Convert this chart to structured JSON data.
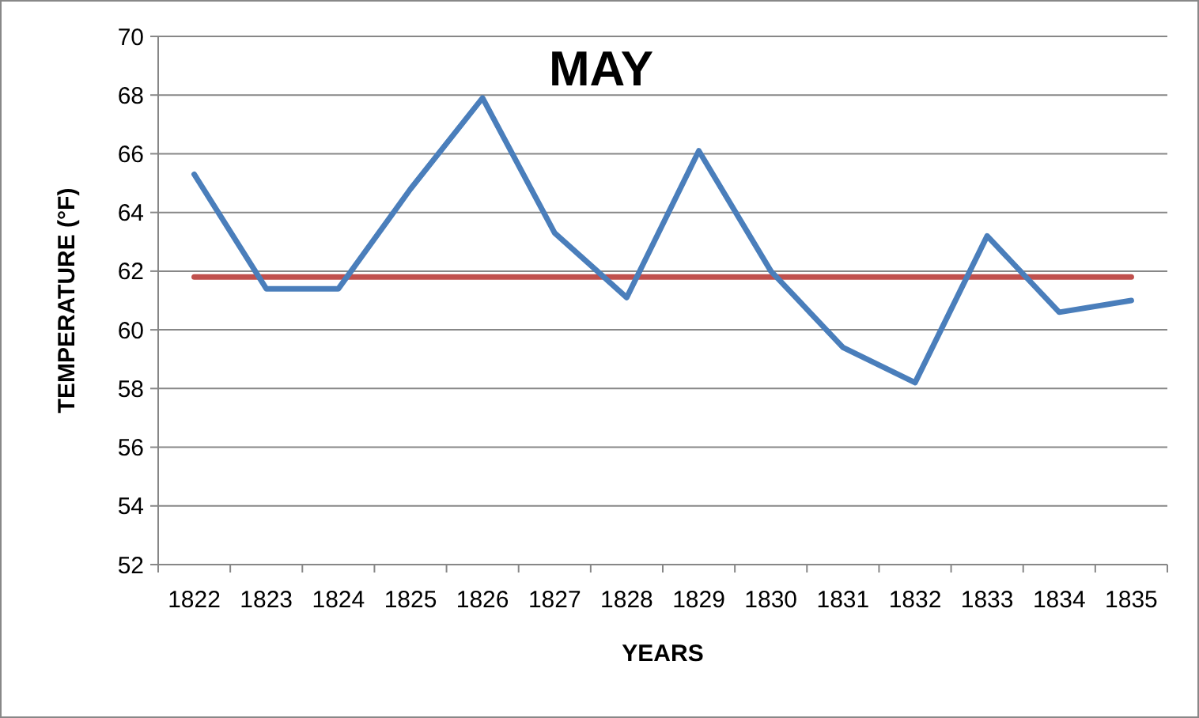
{
  "chart_data": {
    "type": "line",
    "title": "MAY",
    "xlabel": "YEARS",
    "ylabel": "TEMPERATURE (°F)",
    "categories": [
      "1822",
      "1823",
      "1824",
      "1825",
      "1826",
      "1827",
      "1828",
      "1829",
      "1830",
      "1831",
      "1832",
      "1833",
      "1834",
      "1835"
    ],
    "series": [
      {
        "color": "#4a7ebb",
        "values": [
          65.3,
          61.4,
          61.4,
          64.8,
          67.9,
          63.3,
          61.1,
          66.1,
          62.0,
          59.4,
          58.2,
          63.2,
          60.6,
          61.0
        ]
      }
    ],
    "ylim": [
      52,
      70
    ],
    "yticks": [
      52,
      54,
      56,
      58,
      60,
      62,
      64,
      66,
      68,
      70
    ],
    "grid": "y",
    "marker": "none",
    "line_style": "solid",
    "ref_lines": [
      {
        "axis": "y",
        "value": 61.8,
        "color": "#c0504d"
      }
    ]
  }
}
